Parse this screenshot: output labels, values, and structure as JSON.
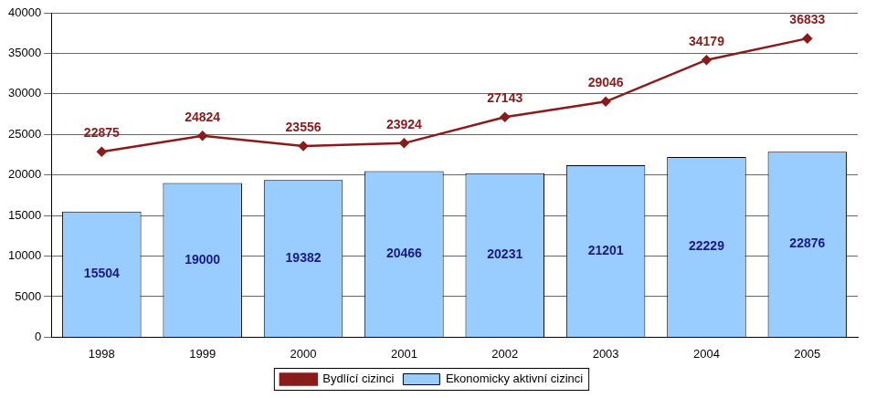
{
  "chart_data": {
    "type": "bar",
    "categories": [
      "1998",
      "1999",
      "2000",
      "2001",
      "2002",
      "2003",
      "2004",
      "2005"
    ],
    "series": [
      {
        "name": "Ekonomicky aktivní cizinci",
        "type": "bar",
        "color": "#99ccff",
        "values": [
          15504,
          19000,
          19382,
          20466,
          20231,
          21201,
          22229,
          22876
        ]
      },
      {
        "name": "Bydlící cizinci",
        "type": "line",
        "color": "#8b1a1a",
        "marker": "diamond",
        "values": [
          22875,
          24824,
          23556,
          23924,
          27143,
          29046,
          34179,
          36833
        ]
      }
    ],
    "ylim": [
      0,
      40000
    ],
    "yticks": [
      0,
      5000,
      10000,
      15000,
      20000,
      25000,
      30000,
      35000,
      40000
    ],
    "grid": true,
    "legend": "bottom",
    "data_labels": true
  }
}
